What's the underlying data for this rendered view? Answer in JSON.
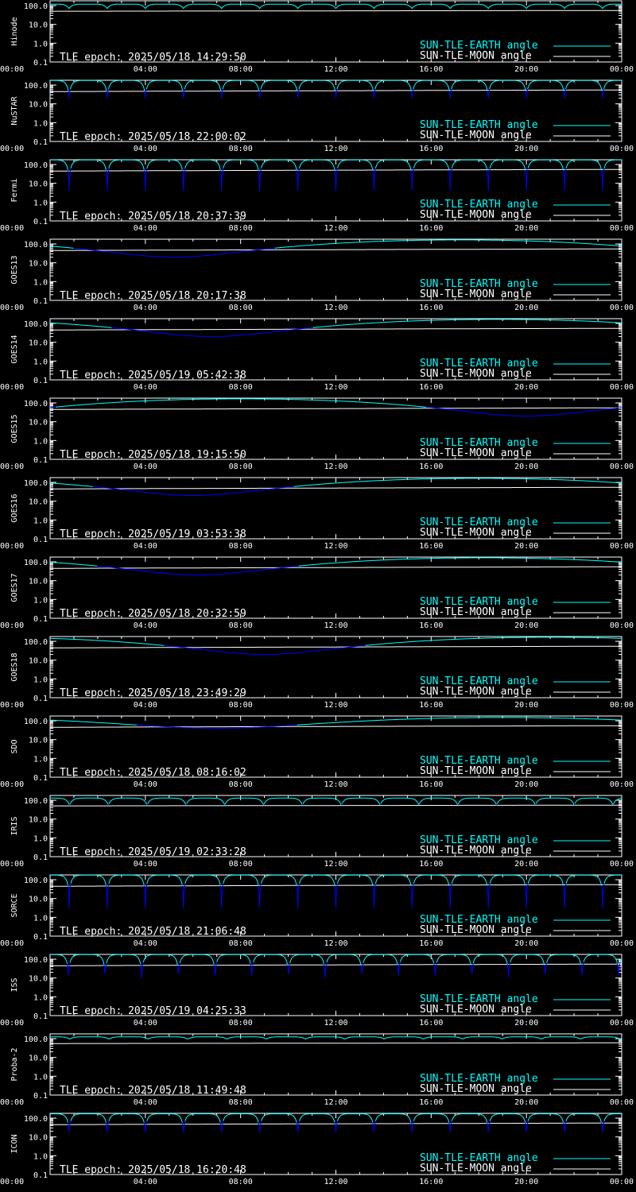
{
  "colors": {
    "background": "#000000",
    "axes": "#ffffff",
    "earth_line": "#00ffff",
    "earth_line_occulted": "#0000ff",
    "moon_line": "#ffffff"
  },
  "x_ticks": [
    "00:00",
    "04:00",
    "08:00",
    "12:00",
    "16:00",
    "20:00",
    "00:00"
  ],
  "y_ticks": [
    "0.1",
    "1.0",
    "10.0",
    "100.0"
  ],
  "legend": {
    "earth": "SUN-TLE-EARTH angle",
    "moon": "SUN-TLE-MOON angle",
    "placement": "bottom-right"
  },
  "chart_data": [
    {
      "type": "line",
      "panel_label": "Hinode",
      "epoch_label": "TLE epoch: 2025/05/18 14:29:50",
      "xlim": [
        "00:00",
        "24:00"
      ],
      "ylim": [
        0.1,
        180
      ],
      "y_scale": "log",
      "earth": {
        "style": "orbital",
        "period_hours": 1.6,
        "max_deg": 120,
        "min_deg": 70
      },
      "moon": {
        "start_deg": 50,
        "end_deg": 55
      }
    },
    {
      "type": "line",
      "panel_label": "NuSTAR",
      "epoch_label": "TLE epoch: 2025/05/18 22:00:02",
      "xlim": [
        "00:00",
        "24:00"
      ],
      "ylim": [
        0.1,
        180
      ],
      "y_scale": "log",
      "earth": {
        "style": "orbital",
        "period_hours": 1.6,
        "max_deg": 175,
        "min_deg": 20
      },
      "moon": {
        "start_deg": 45,
        "end_deg": 55
      }
    },
    {
      "type": "line",
      "panel_label": "Fermi",
      "epoch_label": "TLE epoch: 2025/05/18 20:37:39",
      "xlim": [
        "00:00",
        "24:00"
      ],
      "ylim": [
        0.1,
        180
      ],
      "y_scale": "log",
      "earth": {
        "style": "orbital",
        "period_hours": 1.6,
        "max_deg": 175,
        "min_deg": 4
      },
      "moon": {
        "start_deg": 45,
        "end_deg": 55
      }
    },
    {
      "type": "line",
      "panel_label": "GOES13",
      "epoch_label": "TLE epoch: 2025/05/18 20:17:38",
      "xlim": [
        "00:00",
        "24:00"
      ],
      "ylim": [
        0.1,
        180
      ],
      "y_scale": "log",
      "earth": {
        "style": "geo",
        "max_deg": 165,
        "min_deg": 20,
        "min_hour": 5.2
      },
      "moon": {
        "start_deg": 45,
        "end_deg": 55
      }
    },
    {
      "type": "line",
      "panel_label": "GOES14",
      "epoch_label": "TLE epoch: 2025/05/19 05:42:38",
      "xlim": [
        "00:00",
        "24:00"
      ],
      "ylim": [
        0.1,
        180
      ],
      "y_scale": "log",
      "earth": {
        "style": "geo",
        "max_deg": 165,
        "min_deg": 20,
        "min_hour": 6.8
      },
      "moon": {
        "start_deg": 45,
        "end_deg": 55
      }
    },
    {
      "type": "line",
      "panel_label": "GOES15",
      "epoch_label": "TLE epoch: 2025/05/18 19:15:50",
      "xlim": [
        "00:00",
        "24:00"
      ],
      "ylim": [
        0.1,
        180
      ],
      "y_scale": "log",
      "earth": {
        "style": "geo",
        "max_deg": 165,
        "min_deg": 20,
        "min_hour": 20.0
      },
      "moon": {
        "start_deg": 45,
        "end_deg": 55
      }
    },
    {
      "type": "line",
      "panel_label": "GOES16",
      "epoch_label": "TLE epoch: 2025/05/19 03:53:38",
      "xlim": [
        "00:00",
        "24:00"
      ],
      "ylim": [
        0.1,
        180
      ],
      "y_scale": "log",
      "earth": {
        "style": "geo",
        "max_deg": 165,
        "min_deg": 20,
        "min_hour": 6.0
      },
      "moon": {
        "start_deg": 45,
        "end_deg": 55
      }
    },
    {
      "type": "line",
      "panel_label": "GOES17",
      "epoch_label": "TLE epoch: 2025/05/18 20:32:59",
      "xlim": [
        "00:00",
        "24:00"
      ],
      "ylim": [
        0.1,
        180
      ],
      "y_scale": "log",
      "earth": {
        "style": "geo",
        "max_deg": 165,
        "min_deg": 20,
        "min_hour": 6.2
      },
      "moon": {
        "start_deg": 45,
        "end_deg": 55
      }
    },
    {
      "type": "line",
      "panel_label": "GOES18",
      "epoch_label": "TLE epoch: 2025/05/18 23:49:29",
      "xlim": [
        "00:00",
        "24:00"
      ],
      "ylim": [
        0.1,
        180
      ],
      "y_scale": "log",
      "earth": {
        "style": "geo",
        "max_deg": 165,
        "min_deg": 20,
        "min_hour": 9.0
      },
      "moon": {
        "start_deg": 45,
        "end_deg": 55
      }
    },
    {
      "type": "line",
      "panel_label": "SDO",
      "epoch_label": "TLE epoch: 2025/05/18 08:16:02",
      "xlim": [
        "00:00",
        "24:00"
      ],
      "ylim": [
        0.1,
        180
      ],
      "y_scale": "log",
      "earth": {
        "style": "geo",
        "max_deg": 150,
        "min_deg": 40,
        "min_hour": 7.0
      },
      "moon": {
        "start_deg": 45,
        "end_deg": 55
      }
    },
    {
      "type": "line",
      "panel_label": "IRIS",
      "epoch_label": "TLE epoch: 2025/05/19 02:33:28",
      "xlim": [
        "00:00",
        "24:00"
      ],
      "ylim": [
        0.1,
        180
      ],
      "y_scale": "log",
      "earth": {
        "style": "orbital",
        "period_hours": 1.63,
        "max_deg": 130,
        "min_deg": 55
      },
      "moon": {
        "start_deg": 50,
        "end_deg": 55
      }
    },
    {
      "type": "line",
      "panel_label": "SORCE",
      "epoch_label": "TLE epoch: 2025/05/18 21:06:48",
      "xlim": [
        "00:00",
        "24:00"
      ],
      "ylim": [
        0.1,
        180
      ],
      "y_scale": "log",
      "earth": {
        "style": "orbital",
        "period_hours": 1.6,
        "max_deg": 175,
        "min_deg": 3
      },
      "moon": {
        "start_deg": 45,
        "end_deg": 55
      }
    },
    {
      "type": "line",
      "panel_label": "ISS",
      "epoch_label": "TLE epoch: 2025/05/19 04:25:33",
      "xlim": [
        "00:00",
        "24:00"
      ],
      "ylim": [
        0.1,
        180
      ],
      "y_scale": "log",
      "earth": {
        "style": "orbital",
        "period_hours": 1.54,
        "max_deg": 175,
        "min_deg": 10
      },
      "moon": {
        "start_deg": 45,
        "end_deg": 55
      }
    },
    {
      "type": "line",
      "panel_label": "Proba-2",
      "epoch_label": "TLE epoch: 2025/05/18 11:49:48",
      "xlim": [
        "00:00",
        "24:00"
      ],
      "ylim": [
        0.1,
        180
      ],
      "y_scale": "log",
      "earth": {
        "style": "orbital",
        "period_hours": 1.65,
        "max_deg": 125,
        "min_deg": 95
      },
      "moon": {
        "start_deg": 55,
        "end_deg": 60
      }
    },
    {
      "type": "line",
      "panel_label": "ICON",
      "epoch_label": "TLE epoch: 2025/05/18 16:20:48",
      "xlim": [
        "00:00",
        "24:00"
      ],
      "ylim": [
        0.1,
        180
      ],
      "y_scale": "log",
      "earth": {
        "style": "orbital",
        "period_hours": 1.6,
        "max_deg": 170,
        "min_deg": 18
      },
      "moon": {
        "start_deg": 45,
        "end_deg": 55
      }
    }
  ]
}
